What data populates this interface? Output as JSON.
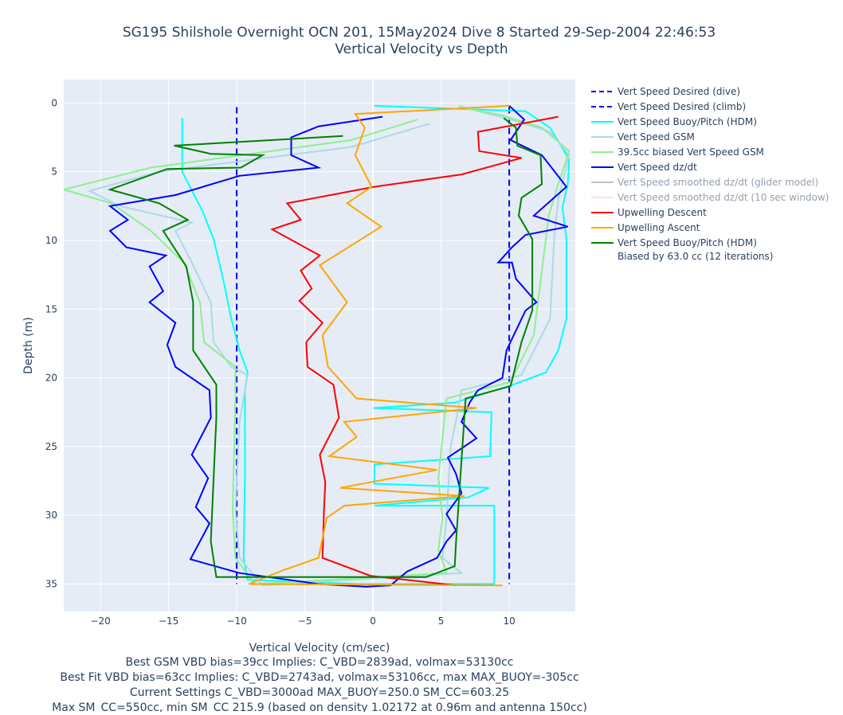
{
  "chart_data": {
    "type": "line",
    "title": "SG195 Shilshole Overnight OCN 201, 15May2024 Dive 8 Started 29-Sep-2004 22:46:53",
    "subtitle": "Vertical Velocity vs Depth",
    "xlabel": "Vertical Velocity (cm/sec)",
    "ylabel": "Depth (m)",
    "notes": [
      "Best GSM VBD bias=39cc Implies: C_VBD=2839ad, volmax=53130cc",
      "Best Fit VBD bias=63cc Implies: C_VBD=2743ad, volmax=53106cc, max MAX_BUOY=-305cc",
      "Current Settings C_VBD=3000ad MAX_BUOY=250.0 SM_CC=603.25",
      "Max SM_CC=550cc, min SM_CC 215.9 (based on density 1.02172 at 0.96m and antenna 150cc)"
    ],
    "xlim": [
      -22.7,
      14.85
    ],
    "ylim": [
      -1.7,
      37
    ],
    "yreversed": true,
    "grid": true,
    "xticks": [
      {
        "value": -20,
        "label": "−20"
      },
      {
        "value": -15,
        "label": "−15"
      },
      {
        "value": -10,
        "label": "−10"
      },
      {
        "value": -5,
        "label": "−5"
      },
      0,
      5,
      10
    ],
    "yticks": [
      0,
      5,
      10,
      15,
      20,
      25,
      30,
      35
    ],
    "series": [
      {
        "name": "Vert Speed Desired (dive)",
        "color": "#0000ff",
        "dash": true,
        "x": [
          -10,
          -10
        ],
        "y": [
          0.3,
          35
        ]
      },
      {
        "name": "Vert Speed Desired (climb)",
        "color": "#0000ff",
        "dash": true,
        "x": [
          10,
          10
        ],
        "y": [
          0.3,
          35
        ]
      },
      {
        "name": "Vert Speed Buoy/Pitch (HDM)",
        "color": "#00ffff",
        "x": [
          -14,
          -14,
          -13.8,
          -12.5,
          -11.7,
          -11,
          -10.4,
          -9.8,
          -9.2,
          -9.4,
          -9.4,
          -9.5,
          -9.2,
          -1,
          8.9,
          8.9,
          0.1,
          7,
          8.5,
          0.1,
          0.1,
          8.6,
          8.7,
          0,
          6,
          10,
          12.7,
          13.6,
          14.2,
          14.2,
          13.9,
          14.3,
          14.4,
          13,
          11.2,
          0.1
        ],
        "y": [
          1.1,
          5,
          5.4,
          7.9,
          9.9,
          12.8,
          15.7,
          18,
          19.6,
          20.9,
          27.3,
          33.1,
          34.7,
          35,
          35,
          29.3,
          29.3,
          28.7,
          28,
          27.7,
          26.3,
          25.7,
          22.5,
          22.2,
          21.8,
          20.6,
          19.6,
          18,
          15.7,
          9.9,
          7.6,
          5.9,
          4.1,
          1.8,
          0.6,
          0.2
        ]
      },
      {
        "name": "Vert Speed GSM",
        "color": "#add8e6",
        "x": [
          4.2,
          -1.6,
          -6.3,
          -15.7,
          -20.8,
          -18.6,
          -13.3,
          -14.5,
          -13.3,
          -11.9,
          -11.7,
          -10.4,
          -9.2,
          -9.8,
          -10.1,
          -9.8,
          -8.1,
          6.5,
          5.1,
          5.4,
          5.7,
          6.3,
          6.5,
          10.9,
          13,
          13.3,
          13.6,
          14.4,
          13,
          10.1,
          7.7,
          6.3
        ],
        "y": [
          1.5,
          3.2,
          3.8,
          5,
          6.4,
          7.5,
          8.7,
          9.3,
          11.6,
          14.5,
          17.4,
          19.2,
          19.8,
          23.2,
          29.6,
          33.1,
          35.1,
          34.2,
          33.1,
          30.2,
          25,
          22.1,
          20.9,
          19.8,
          15.7,
          9.9,
          7,
          3.8,
          2.1,
          1.2,
          0.6,
          0.2
        ]
      },
      {
        "name": "39.5cc biased Vert Speed GSM",
        "color": "#90ee90",
        "x": [
          3.3,
          -1.6,
          -16.3,
          -22.7,
          -19.2,
          -16.3,
          -13.9,
          -12.7,
          -12.4,
          -10.1,
          -10.1,
          -10.3,
          -10.1,
          -8.7,
          5.4,
          4.8,
          5.1,
          4.8,
          5.4,
          10.1,
          11.8,
          12.4,
          12.9,
          13.6,
          14.4,
          12.4,
          9.5,
          6.3
        ],
        "y": [
          1.2,
          2.7,
          4.7,
          6.3,
          7.3,
          9.3,
          11.6,
          14.5,
          17.4,
          19.2,
          21.5,
          29.6,
          33.1,
          35,
          34.2,
          32.5,
          30.2,
          27.3,
          21.5,
          20.3,
          16.9,
          12.2,
          8.2,
          5.9,
          3.5,
          1.8,
          0.9,
          0.3
        ]
      },
      {
        "name": "Vert Speed dz/dt",
        "color": "#0000ff",
        "x": [
          0.7,
          -4,
          -6,
          -6,
          -4,
          -9.8,
          -14.5,
          -19.3,
          -18,
          -19.3,
          -18.1,
          -15.2,
          -16.4,
          -15.4,
          -16.4,
          -14.5,
          -15.1,
          -14.5,
          -12,
          -11.9,
          -13.3,
          -12.1,
          -13,
          -12,
          -13.4,
          -9.8,
          -4,
          -0.5,
          1.3,
          2.5,
          4.7,
          5.4,
          6.1,
          5.4,
          6.5,
          6.1,
          5.5,
          7.6,
          6.5,
          7.1,
          7.7,
          9.5,
          9.8,
          11.2,
          12,
          10.5,
          10.2,
          9.2,
          10.2,
          11.2,
          14.3,
          11.8,
          14.2,
          12.4,
          10.1,
          11.1,
          10
        ],
        "y": [
          1,
          1.7,
          2.5,
          3.8,
          4.7,
          5.3,
          6.7,
          7.5,
          8.5,
          9.3,
          10.5,
          11.1,
          11.9,
          13.7,
          14.5,
          16,
          17.6,
          19.2,
          20.9,
          22.9,
          25.6,
          27.3,
          29.4,
          30.6,
          33.2,
          34.2,
          35,
          35.2,
          35.1,
          34.1,
          33.1,
          31.9,
          31.1,
          29.9,
          28.4,
          27,
          25.8,
          24.4,
          23.2,
          21.8,
          20.9,
          20,
          18,
          15.1,
          14.5,
          12.8,
          11.6,
          11.6,
          10.5,
          9.6,
          9,
          8.2,
          6.1,
          3.8,
          2.7,
          1.2,
          0.2
        ]
      },
      {
        "name": "Vert Speed smoothed dz/dt (glider model)",
        "color": "#808080",
        "visible": "legendonly",
        "x": [],
        "y": []
      },
      {
        "name": "Vert Speed smoothed dz/dt (10 sec window)",
        "color": "#ffc0cb",
        "visible": "legendonly",
        "x": [],
        "y": []
      },
      {
        "name": "Upwelling Descent",
        "color": "#ff0000",
        "x": [
          13.6,
          7.7,
          7.8,
          10.9,
          6.5,
          0.1,
          -6.3,
          -5.3,
          -7.4,
          -3.9,
          -5.3,
          -4.5,
          -5.4,
          -3.7,
          -4.9,
          -4.8,
          -2.9,
          -2.5,
          -3.9,
          -3.5,
          -3.6,
          -3.7,
          -0.2,
          6.1
        ],
        "y": [
          1,
          2.1,
          3.5,
          4,
          5.2,
          6.1,
          7.3,
          8.5,
          9.2,
          11.1,
          12.2,
          13.5,
          14.4,
          16,
          17.4,
          19.2,
          20.5,
          22.9,
          25.6,
          27.6,
          29.6,
          33.1,
          34.4,
          35.1
        ]
      },
      {
        "name": "Upwelling Ascent",
        "color": "#ffa500",
        "x": [
          9.5,
          -9.1,
          -6.6,
          -4,
          -3.4,
          -2.1,
          6.7,
          -2.4,
          4.7,
          -3.2,
          -1.2,
          -2.1,
          7.6,
          -1.2,
          -3.3,
          -3.7,
          -1.9,
          -3.9,
          0.6,
          -1.9,
          -0.1,
          -1.3,
          -0.6,
          -1.3,
          10
        ],
        "y": [
          35.1,
          35,
          34,
          33.1,
          30.2,
          29.3,
          28.6,
          28,
          26.7,
          25.7,
          24.3,
          23.2,
          22.2,
          21.5,
          19.2,
          16.9,
          14.5,
          11.8,
          9,
          7.3,
          6.1,
          3.8,
          1.8,
          0.8,
          0.2
        ]
      },
      {
        "name": "Vert Speed Buoy/Pitch (HDM)\nBiased by 63.0 cc (12 iterations)",
        "color": "#008000",
        "x": [
          -2.2,
          -14.6,
          -11.9,
          -8.1,
          -9.7,
          -15.1,
          -19.3,
          -15.7,
          -13.6,
          -15.4,
          -13.7,
          -13.2,
          -13.2,
          -11.5,
          -11.5,
          -11.7,
          -11.9,
          -11.5,
          3.9,
          6,
          6.1,
          6.8,
          10.1,
          10.9,
          11.7,
          11.7,
          10.7,
          10.9,
          12.4,
          12.3,
          10.6,
          10.5,
          9.6
        ],
        "y": [
          2.4,
          3.1,
          3.7,
          3.8,
          4.7,
          4.8,
          6.3,
          7.3,
          8.5,
          9.3,
          11.9,
          14.5,
          18,
          20.5,
          22.9,
          27.3,
          31.9,
          34.5,
          34.5,
          33.7,
          31.9,
          21.5,
          20.6,
          17.4,
          15.1,
          9.9,
          8.2,
          6.9,
          5.9,
          3.8,
          3.1,
          1.8,
          1.1
        ]
      }
    ]
  }
}
